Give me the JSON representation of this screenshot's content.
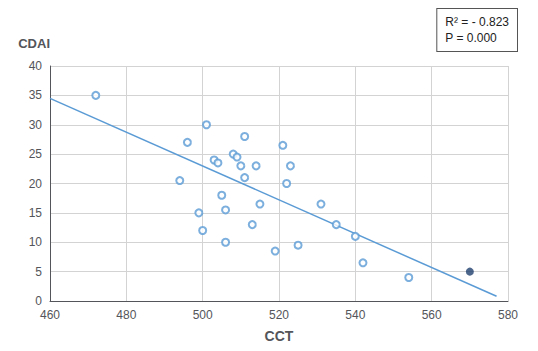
{
  "chart_data": {
    "type": "scatter",
    "ylabel": "CDAI",
    "xlabel": "CCT",
    "xlim": [
      460,
      580
    ],
    "ylim": [
      0,
      40
    ],
    "xticks": [
      460,
      480,
      500,
      520,
      540,
      560,
      580
    ],
    "yticks": [
      0,
      5,
      10,
      15,
      20,
      25,
      30,
      35,
      40
    ],
    "grid": true,
    "annotations": [
      "R² = - 0.823",
      "P = 0.000"
    ],
    "series": [
      {
        "type": "scatter",
        "marker": "open_circle",
        "color": "#5b9bd5",
        "x": [
          472,
          494,
          496,
          499,
          500,
          501,
          503,
          504,
          505,
          506,
          506,
          508,
          509,
          510,
          511,
          511,
          513,
          514,
          515,
          519,
          521,
          522,
          523,
          525,
          531,
          535,
          540,
          542,
          554
        ],
        "values": [
          35,
          20.5,
          27,
          15,
          12,
          30,
          24,
          23.5,
          18,
          10,
          15.5,
          25,
          24.5,
          23,
          28,
          21,
          13,
          23,
          16.5,
          8.5,
          26.5,
          20,
          23,
          9.5,
          16.5,
          13,
          11,
          6.5,
          4
        ]
      },
      {
        "type": "scatter",
        "marker": "circle",
        "color": "#1f3f6e",
        "x": [
          570
        ],
        "values": [
          5
        ]
      },
      {
        "type": "line",
        "line_style": "solid",
        "color": "#5b9bd5",
        "x": [
          460,
          577
        ],
        "values": [
          34.5,
          0.8
        ]
      }
    ]
  }
}
